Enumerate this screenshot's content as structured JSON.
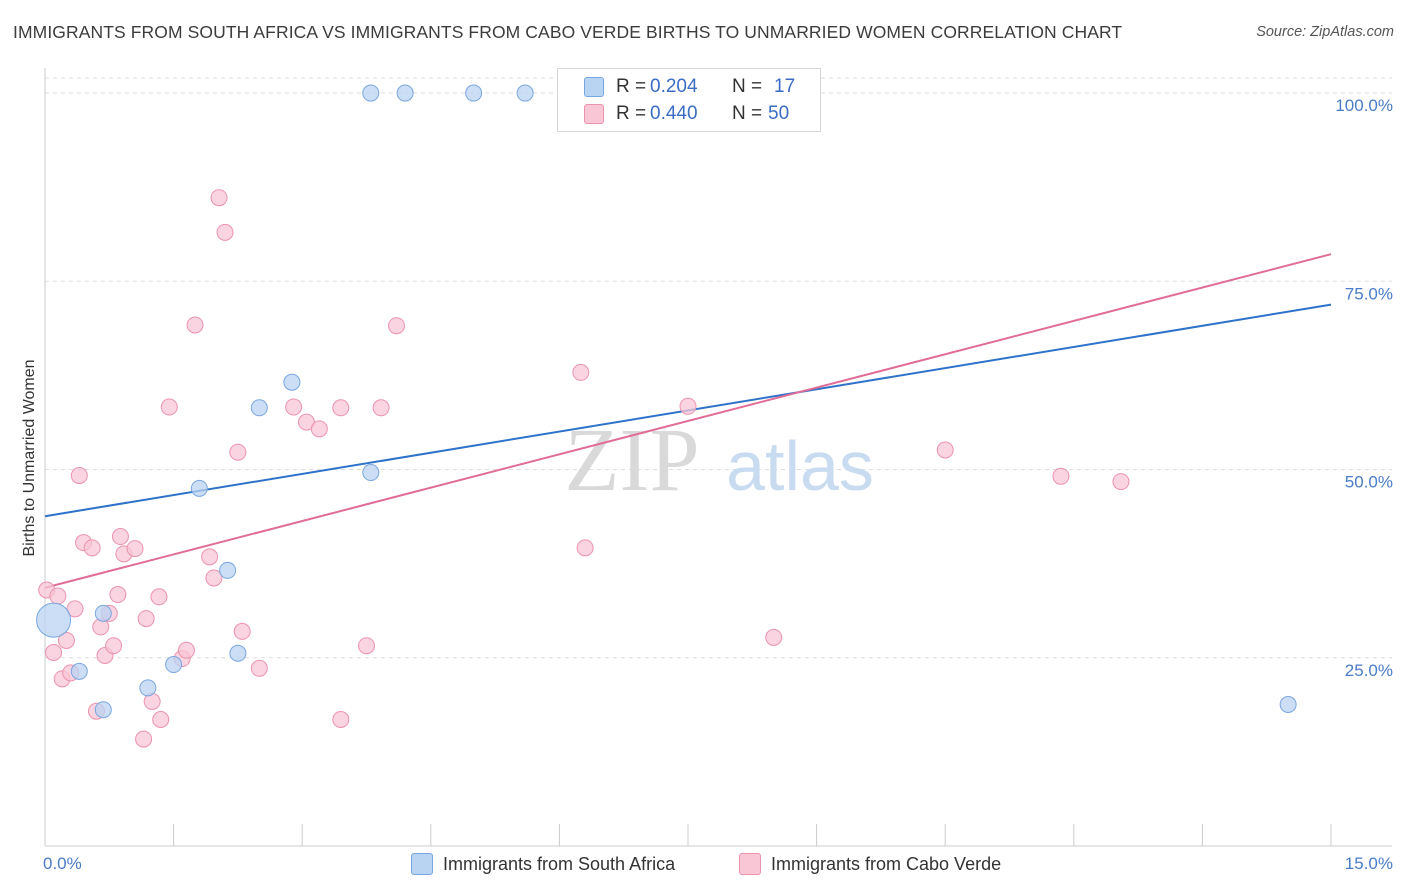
{
  "title": "IMMIGRANTS FROM SOUTH AFRICA VS IMMIGRANTS FROM CABO VERDE BIRTHS TO UNMARRIED WOMEN CORRELATION CHART",
  "source": "Source: ZipAtlas.com",
  "watermark": {
    "zip": "ZIP",
    "atlas": "atlas"
  },
  "legend": {
    "rows": [
      {
        "r_label": "R =",
        "r_value": "0.204",
        "n_label": "N =",
        "n_value": "17"
      },
      {
        "r_label": "R =",
        "r_value": "0.440",
        "n_label": "N =",
        "n_value": "50"
      }
    ]
  },
  "colors": {
    "blue_fill": "#b9d3f2",
    "blue_stroke": "#7aa6de",
    "blue_line": "#2f72c9",
    "pink_fill": "#f8c6d5",
    "pink_stroke": "#ec93ae",
    "pink_line": "#e06c97",
    "axis_text": "#4a7cc7",
    "grid": "#dddddd"
  },
  "chart_data": {
    "type": "scatter",
    "title": "IMMIGRANTS FROM SOUTH AFRICA VS IMMIGRANTS FROM CABO VERDE BIRTHS TO UNMARRIED WOMEN CORRELATION CHART",
    "xlabel": "",
    "ylabel": "Births to Unmarried Women",
    "xlim": [
      0,
      15
    ],
    "ylim": [
      0,
      102
    ],
    "x_tick_labels": [
      "0.0%",
      "15.0%"
    ],
    "y_ticks": [
      25,
      50,
      75,
      100
    ],
    "y_tick_labels": [
      "25.0%",
      "50.0%",
      "75.0%",
      "100.0%"
    ],
    "grid": true,
    "legend_position": "top-center",
    "series": [
      {
        "name": "Immigrants from South Africa",
        "color": "blue",
        "r": 0.204,
        "n": 17,
        "trend": {
          "x": [
            0,
            15
          ],
          "y": [
            43.8,
            71.9
          ]
        },
        "points": [
          {
            "x": 0.1,
            "y": 30.0,
            "big": true
          },
          {
            "x": 0.4,
            "y": 23.2
          },
          {
            "x": 0.68,
            "y": 18.1
          },
          {
            "x": 0.68,
            "y": 30.9
          },
          {
            "x": 1.2,
            "y": 21.0
          },
          {
            "x": 1.5,
            "y": 24.1
          },
          {
            "x": 1.8,
            "y": 47.5
          },
          {
            "x": 2.13,
            "y": 36.6
          },
          {
            "x": 2.25,
            "y": 25.6
          },
          {
            "x": 2.5,
            "y": 58.2
          },
          {
            "x": 2.88,
            "y": 61.6
          },
          {
            "x": 3.8,
            "y": 49.6
          },
          {
            "x": 3.8,
            "y": 100.0
          },
          {
            "x": 4.2,
            "y": 100.0
          },
          {
            "x": 5.0,
            "y": 100.0
          },
          {
            "x": 5.6,
            "y": 100.0
          },
          {
            "x": 14.5,
            "y": 18.8
          }
        ]
      },
      {
        "name": "Immigrants from Cabo Verde",
        "color": "pink",
        "r": 0.44,
        "n": 50,
        "trend": {
          "x": [
            0,
            15
          ],
          "y": [
            34.3,
            78.6
          ]
        },
        "points": [
          {
            "x": 0.02,
            "y": 34.0
          },
          {
            "x": 0.1,
            "y": 25.7
          },
          {
            "x": 0.15,
            "y": 33.2
          },
          {
            "x": 0.2,
            "y": 22.2
          },
          {
            "x": 0.25,
            "y": 27.3
          },
          {
            "x": 0.35,
            "y": 31.5
          },
          {
            "x": 0.4,
            "y": 49.2
          },
          {
            "x": 0.45,
            "y": 40.3
          },
          {
            "x": 0.55,
            "y": 39.6
          },
          {
            "x": 0.6,
            "y": 17.9
          },
          {
            "x": 0.65,
            "y": 29.1
          },
          {
            "x": 0.7,
            "y": 25.3
          },
          {
            "x": 0.75,
            "y": 30.9
          },
          {
            "x": 0.8,
            "y": 26.6
          },
          {
            "x": 0.85,
            "y": 33.4
          },
          {
            "x": 0.88,
            "y": 41.1
          },
          {
            "x": 0.92,
            "y": 38.8
          },
          {
            "x": 1.05,
            "y": 39.5
          },
          {
            "x": 1.15,
            "y": 14.2
          },
          {
            "x": 1.18,
            "y": 30.2
          },
          {
            "x": 1.25,
            "y": 19.2
          },
          {
            "x": 1.33,
            "y": 33.1
          },
          {
            "x": 1.35,
            "y": 16.8
          },
          {
            "x": 1.45,
            "y": 58.3
          },
          {
            "x": 1.6,
            "y": 24.9
          },
          {
            "x": 1.75,
            "y": 69.2
          },
          {
            "x": 1.92,
            "y": 38.4
          },
          {
            "x": 1.97,
            "y": 35.6
          },
          {
            "x": 2.03,
            "y": 86.1
          },
          {
            "x": 2.1,
            "y": 81.5
          },
          {
            "x": 2.25,
            "y": 52.3
          },
          {
            "x": 2.3,
            "y": 28.5
          },
          {
            "x": 2.5,
            "y": 23.6
          },
          {
            "x": 2.9,
            "y": 58.3
          },
          {
            "x": 3.05,
            "y": 56.3
          },
          {
            "x": 3.2,
            "y": 55.4
          },
          {
            "x": 3.45,
            "y": 16.8
          },
          {
            "x": 3.45,
            "y": 58.2
          },
          {
            "x": 3.75,
            "y": 26.6
          },
          {
            "x": 3.92,
            "y": 58.2
          },
          {
            "x": 4.1,
            "y": 69.1
          },
          {
            "x": 6.25,
            "y": 62.9
          },
          {
            "x": 6.3,
            "y": 39.6
          },
          {
            "x": 7.5,
            "y": 58.4
          },
          {
            "x": 8.5,
            "y": 27.7
          },
          {
            "x": 10.5,
            "y": 52.6
          },
          {
            "x": 11.85,
            "y": 49.1
          },
          {
            "x": 12.55,
            "y": 48.4
          },
          {
            "x": 0.3,
            "y": 23.0
          },
          {
            "x": 1.65,
            "y": 26.0
          }
        ]
      }
    ]
  }
}
